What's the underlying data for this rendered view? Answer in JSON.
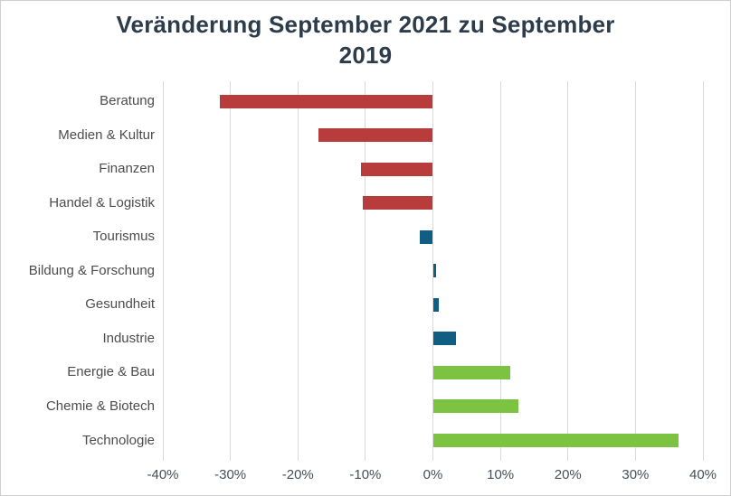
{
  "title_lines": [
    "Veränderung September 2021 zu September",
    "2019"
  ],
  "colors": {
    "negative_red": "#b83c3c",
    "neutral_blue": "#115e84",
    "positive_green": "#7cc342",
    "grid": "#dadada",
    "title_text": "#2d3c4b",
    "axis_text": "#4c4c4c",
    "frame_border": "#cfcfcf",
    "background": "#ffffff"
  },
  "chart_data": {
    "type": "bar",
    "orientation": "horizontal",
    "title": "Veränderung September 2021 zu September 2019",
    "categories": [
      "Beratung",
      "Medien & Kultur",
      "Finanzen",
      "Handel & Logistik",
      "Tourismus",
      "Bildung & Forschung",
      "Gesundheit",
      "Industrie",
      "Energie & Bau",
      "Chemie & Biotech",
      "Technologie"
    ],
    "values": [
      -31.5,
      -16.9,
      -10.6,
      -10.4,
      -1.9,
      0.5,
      0.9,
      3.4,
      11.4,
      12.6,
      36.4
    ],
    "unit": "%",
    "bar_colors": [
      "#b83c3c",
      "#b83c3c",
      "#b83c3c",
      "#b83c3c",
      "#115e84",
      "#115e84",
      "#115e84",
      "#115e84",
      "#7cc342",
      "#7cc342",
      "#7cc342"
    ],
    "xlabel": "",
    "ylabel": "",
    "xlim": [
      -40,
      40
    ],
    "xticks": [
      -40,
      -30,
      -20,
      -10,
      0,
      10,
      20,
      30,
      40
    ],
    "xtick_labels": [
      "-40%",
      "-30%",
      "-20%",
      "-10%",
      "0%",
      "10%",
      "20%",
      "30%",
      "40%"
    ],
    "grid": true,
    "legend": false
  }
}
